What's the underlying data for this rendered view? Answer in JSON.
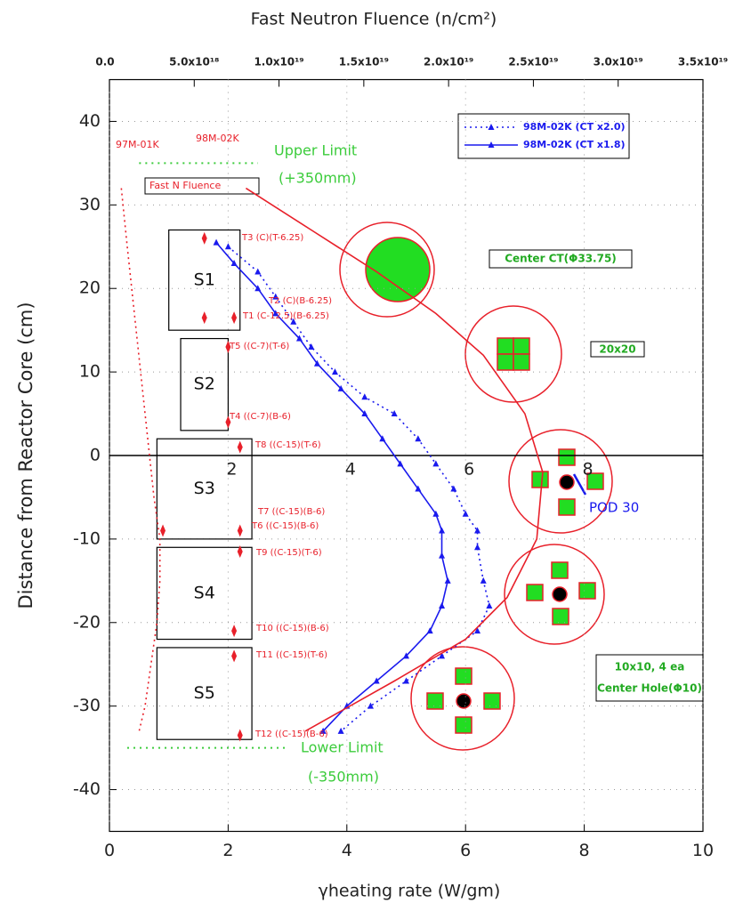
{
  "chart_data": {
    "type": "line",
    "title": "Fast Neutron Fluence (n/cm²)",
    "xlabel": "γheating rate (W/gm)",
    "ylabel": "Distance from Reactor Core (cm)",
    "xlim": [
      0,
      10
    ],
    "xticks": [
      0,
      2,
      4,
      6,
      8,
      10
    ],
    "ylim": [
      -45,
      45
    ],
    "yticks": [
      -40,
      -30,
      -20,
      -10,
      0,
      10,
      20,
      30,
      40
    ],
    "x2lim": [
      0,
      3.5e+19
    ],
    "x2ticks": [
      {
        "value": 0,
        "label": "0.0"
      },
      {
        "value": 5e+18,
        "label": "5.0x10¹⁸"
      },
      {
        "value": 1e+19,
        "label": "1.0x10¹⁹"
      },
      {
        "value": 1.5e+19,
        "label": "1.5x10¹⁹"
      },
      {
        "value": 2e+19,
        "label": "2.0x10¹⁹"
      },
      {
        "value": 2.5e+19,
        "label": "2.5x10¹⁹"
      },
      {
        "value": 3e+19,
        "label": "3.0x10¹⁹"
      },
      {
        "value": 3.5e+19,
        "label": "3.5x10¹⁹"
      }
    ],
    "grid": true,
    "grid_style": "dotted",
    "legend": "upper right",
    "series": [
      {
        "name": "98M-02K (CT x2.0)",
        "color": "#1a1aee",
        "dash": "dotted",
        "marker": "triangle",
        "x": [
          2.0,
          2.5,
          2.8,
          3.1,
          3.4,
          3.8,
          4.3,
          4.8,
          5.2,
          5.5,
          5.8,
          6.0,
          6.2,
          6.2,
          6.3,
          6.4,
          6.2,
          5.6,
          5.0,
          4.4,
          3.9
        ],
        "values": [
          25,
          22,
          19,
          16,
          13,
          10,
          7,
          5,
          2,
          -1,
          -4,
          -7,
          -9,
          -11,
          -15,
          -18,
          -21,
          -24,
          -27,
          -30,
          -33
        ]
      },
      {
        "name": "98M-02K (CT x1.8)",
        "color": "#1a1aee",
        "dash": "solid",
        "marker": "triangle",
        "x": [
          1.8,
          2.1,
          2.5,
          2.8,
          3.2,
          3.5,
          3.9,
          4.3,
          4.6,
          4.9,
          5.2,
          5.5,
          5.6,
          5.6,
          5.7,
          5.6,
          5.4,
          5.0,
          4.5,
          4.0,
          3.6
        ],
        "values": [
          25.5,
          23,
          20,
          17,
          14,
          11,
          8,
          5,
          2,
          -1,
          -4,
          -7,
          -9,
          -12,
          -15,
          -18,
          -21,
          -24,
          -27,
          -30,
          -33
        ]
      }
    ],
    "extra_series": [
      {
        "name": "97M-01K",
        "color": "#e8202a",
        "dash": "dotted",
        "marker": "none",
        "x": [
          0.2,
          0.3,
          0.45,
          0.6,
          0.75,
          0.85,
          0.85,
          0.8,
          0.7,
          0.6,
          0.5
        ],
        "values": [
          32,
          25,
          15,
          5,
          -5,
          -10,
          -15,
          -20,
          -25,
          -30,
          -33
        ]
      },
      {
        "name": "98M-02K",
        "color": "#e8202a",
        "dash": "none",
        "marker": "diamond",
        "x": [
          1.6,
          2.1,
          1.6,
          2.0,
          2.0,
          2.2,
          2.2,
          0.9,
          2.2,
          2.1,
          2.1,
          2.2
        ],
        "values": [
          26,
          16.5,
          16.5,
          13,
          4,
          1,
          -9,
          -9,
          -11.5,
          -21,
          -24,
          -33.5
        ]
      },
      {
        "name": "Fast N Fluence",
        "color": "#e8202a",
        "dash": "solid",
        "marker": "none",
        "axis": "x2",
        "x": [
          8.05e+18,
          1.19e+19,
          1.575e+19,
          1.925e+19,
          2.205e+19,
          2.45e+19,
          2.555e+19,
          2.52e+19,
          2.345e+19,
          2.1e+19,
          1.68e+19,
          1.155e+19
        ],
        "values": [
          32,
          27,
          22,
          17,
          12,
          5,
          -2,
          -10,
          -17,
          -22,
          -27,
          -33
        ]
      }
    ],
    "limits": [
      {
        "value": 35,
        "label": "Upper Limit",
        "note": "(+350mm)"
      },
      {
        "value": -35,
        "label": "Lower Limit",
        "note": "(-350mm)"
      }
    ],
    "zones": [
      "S1",
      "S2",
      "S3",
      "S4",
      "S5"
    ],
    "thermocouples": [
      "T3 (C)(T-6.25)",
      "T2 (C)(B-6.25)",
      "T1 (C-12.5)(B-6.25)",
      "T5 ((C-7)(T-6)",
      "T4 ((C-7)(B-6)",
      "T8 ((C-15)(T-6)",
      "T7 ((C-15)(B-6)",
      "T6 ((C-15)(B-6)",
      "T9 ((C-15)(T-6)",
      "T10 ((C-15)(B-6)",
      "T11 ((C-15)(T-6)",
      "T12 ((C-15)(B-6)"
    ],
    "annotations": [
      "Center CT(Φ33.75)",
      "20x20",
      "POD 30",
      "10x10, 4 ea",
      "Center Hole(Φ10)"
    ]
  }
}
